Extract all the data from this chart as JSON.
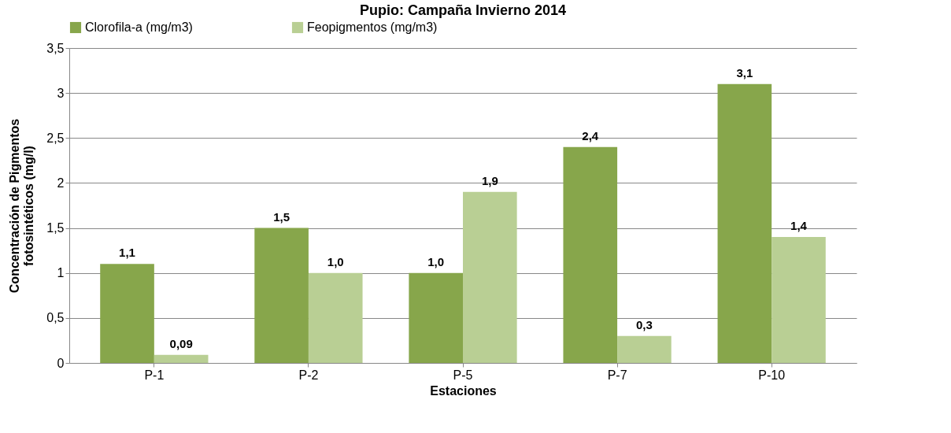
{
  "chart_data": {
    "type": "bar",
    "title": "Pupio: Campaña Invierno 2014",
    "xlabel": "Estaciones",
    "ylabel": "Concentración de Pigmentos\nfotosintéticos (mg/l)",
    "categories": [
      "P-1",
      "P-2",
      "P-5",
      "P-7",
      "P-10"
    ],
    "series": [
      {
        "name": "Clorofila-a  (mg/m3)",
        "color": "#87a64b",
        "values": [
          1.1,
          1.5,
          1.0,
          2.4,
          3.1
        ],
        "value_labels": [
          "1,1",
          "1,5",
          "1,0",
          "2,4",
          "3,1"
        ]
      },
      {
        "name": "Feopigmentos (mg/m3)",
        "color": "#b9cf94",
        "values": [
          0.09,
          1.0,
          1.9,
          0.3,
          1.4
        ],
        "value_labels": [
          "0,09",
          "1,0",
          "1,9",
          "0,3",
          "1,4"
        ]
      }
    ],
    "ylim": [
      0,
      3.5
    ],
    "yticks": [
      0,
      {
        "value": 0.5,
        "label": "0,5"
      },
      1,
      {
        "value": 1.5,
        "label": "1,5"
      },
      2,
      {
        "value": 2.5,
        "label": "2,5"
      },
      3,
      {
        "value": 3.5,
        "label": "3,5"
      }
    ],
    "grid": "y",
    "legend": "top"
  }
}
